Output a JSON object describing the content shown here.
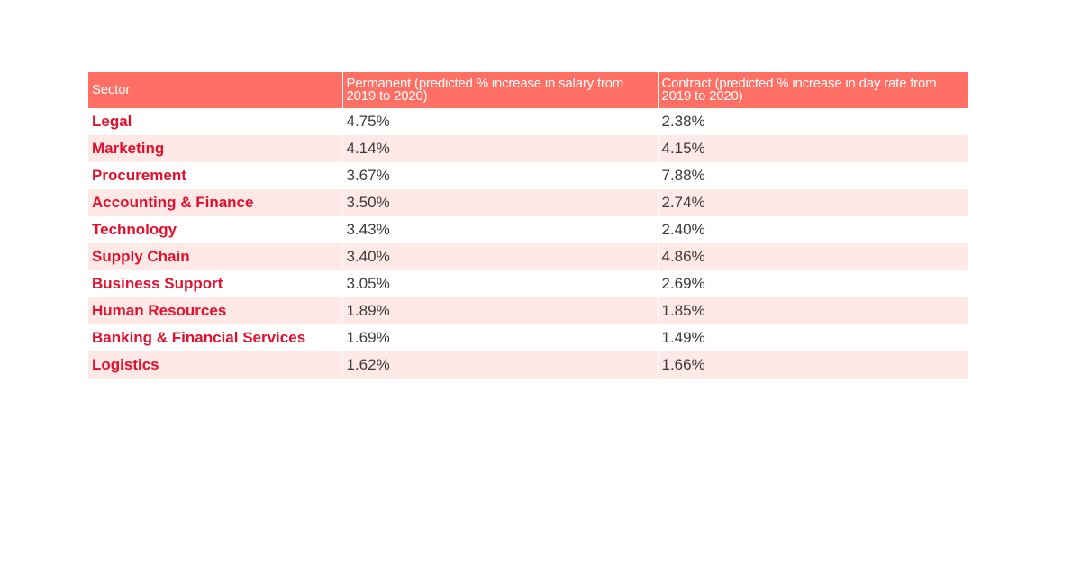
{
  "table": {
    "headers": {
      "sector": "Sector",
      "permanent": "Permanent  (predicted % increase in salary from 2019 to 2020)",
      "contract": "Contract (predicted % increase in day rate from 2019 to 2020)"
    },
    "rows": [
      {
        "sector": "Legal",
        "permanent": "4.75%",
        "contract": "2.38%"
      },
      {
        "sector": "Marketing",
        "permanent": "4.14%",
        "contract": "4.15%"
      },
      {
        "sector": "Procurement",
        "permanent": "3.67%",
        "contract": "7.88%"
      },
      {
        "sector": "Accounting & Finance",
        "permanent": "3.50%",
        "contract": "2.74%"
      },
      {
        "sector": "Technology",
        "permanent": "3.43%",
        "contract": "2.40%"
      },
      {
        "sector": "Supply Chain",
        "permanent": "3.40%",
        "contract": "4.86%"
      },
      {
        "sector": "Business Support",
        "permanent": "3.05%",
        "contract": "2.69%"
      },
      {
        "sector": "Human Resources",
        "permanent": "1.89%",
        "contract": "1.85%"
      },
      {
        "sector": "Banking & Financial Services",
        "permanent": "1.69%",
        "contract": "1.49%"
      },
      {
        "sector": "Logistics",
        "permanent": "1.62%",
        "contract": "1.66%"
      }
    ]
  },
  "colors": {
    "header_bg": "#ff6f64",
    "header_text": "#ffffff",
    "alt_row_bg": "#ffe9e6",
    "sector_text": "#e3102d",
    "value_text": "#3a3a3a"
  }
}
